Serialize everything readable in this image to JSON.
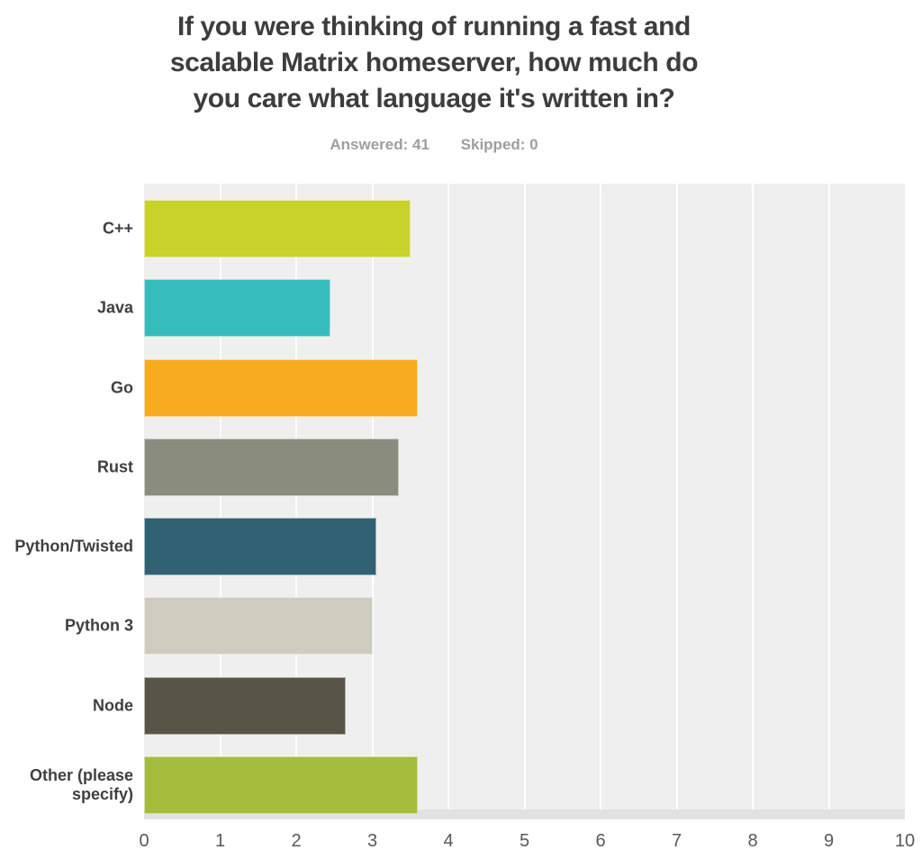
{
  "header": {
    "title_lines": [
      "If you were thinking of running a fast and",
      "scalable Matrix homeserver, how much do",
      "you care what language it's written in?"
    ],
    "answered_label": "Answered: 41",
    "skipped_label": "Skipped: 0"
  },
  "chart_data": {
    "type": "bar",
    "orientation": "horizontal",
    "title": "If you were thinking of running a fast and scalable Matrix homeserver, how much do you care what language it's written in?",
    "answered": 41,
    "skipped": 0,
    "categories": [
      "C++",
      "Java",
      "Go",
      "Rust",
      "Python/Twisted",
      "Python 3",
      "Node",
      "Other (please specify)"
    ],
    "values": [
      3.5,
      2.45,
      3.6,
      3.35,
      3.05,
      3.0,
      2.65,
      3.6
    ],
    "colors": [
      "#c8d22b",
      "#36bcbd",
      "#f6ac1e",
      "#8a8d7e",
      "#306274",
      "#cdccbe",
      "#585546",
      "#a4bc3b"
    ],
    "xlabel": "",
    "ylabel": "",
    "xlim": [
      0,
      10
    ],
    "x_ticks": [
      0,
      1,
      2,
      3,
      4,
      5,
      6,
      7,
      8,
      9,
      10
    ],
    "grid": "vertical-white-gridlines",
    "plot_background": "#efefef",
    "legend": "none"
  }
}
